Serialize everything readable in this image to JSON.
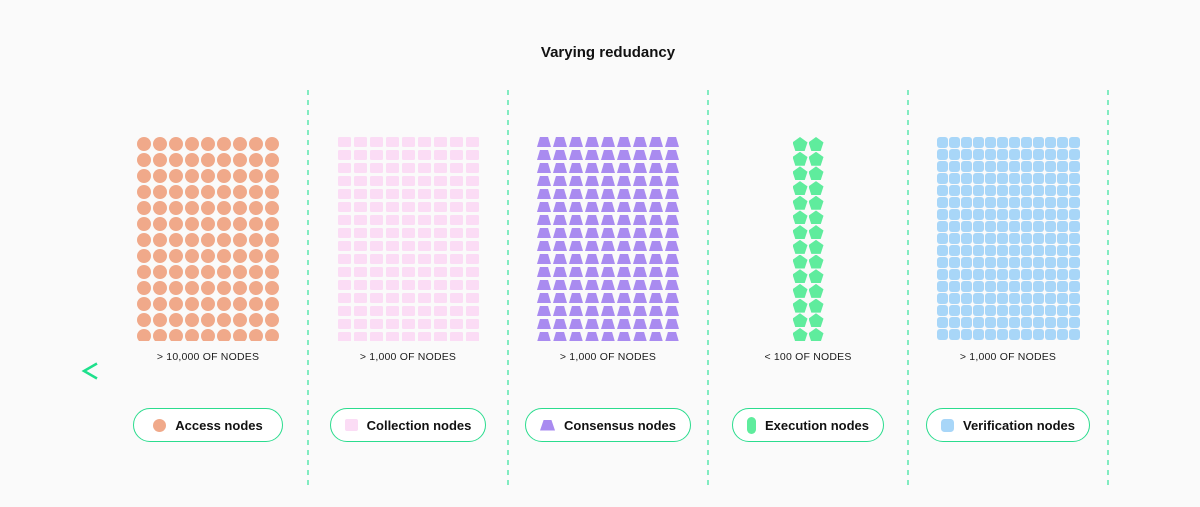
{
  "title": "Varying redudancy",
  "groups": [
    {
      "id": "access",
      "legend_label": "Access nodes",
      "count_label": "> 10,000 OF NODES",
      "shape": "circle",
      "color": "#f0a98a",
      "cols": 9,
      "rows": 13
    },
    {
      "id": "collection",
      "legend_label": "Collection nodes",
      "count_label": "> 1,000 OF NODES",
      "shape": "rect",
      "color": "#fbdcf5",
      "cols": 9,
      "rows": 16
    },
    {
      "id": "consensus",
      "legend_label": "Consensus nodes",
      "count_label": "> 1,000 OF NODES",
      "shape": "trapezoid",
      "color": "#a98bf0",
      "cols": 9,
      "rows": 16
    },
    {
      "id": "execution",
      "legend_label": "Execution nodes",
      "count_label": "< 100 OF NODES",
      "shape": "pentagon",
      "color": "#5fec9d",
      "cols": 2,
      "rows": 14
    },
    {
      "id": "verification",
      "legend_label": "Verification nodes",
      "count_label": "> 1,000 OF NODES",
      "shape": "rounded-square",
      "color": "#a8d6f8",
      "cols": 12,
      "rows": 17
    }
  ],
  "arrow": {
    "direction": "left"
  },
  "colors": {
    "background": "#fafafa",
    "divider": "#82ecc1",
    "pill_border": "#2bdc8e",
    "arrow_start": "#1ee08c",
    "arrow_end": "#007c52",
    "text": "#111111"
  }
}
